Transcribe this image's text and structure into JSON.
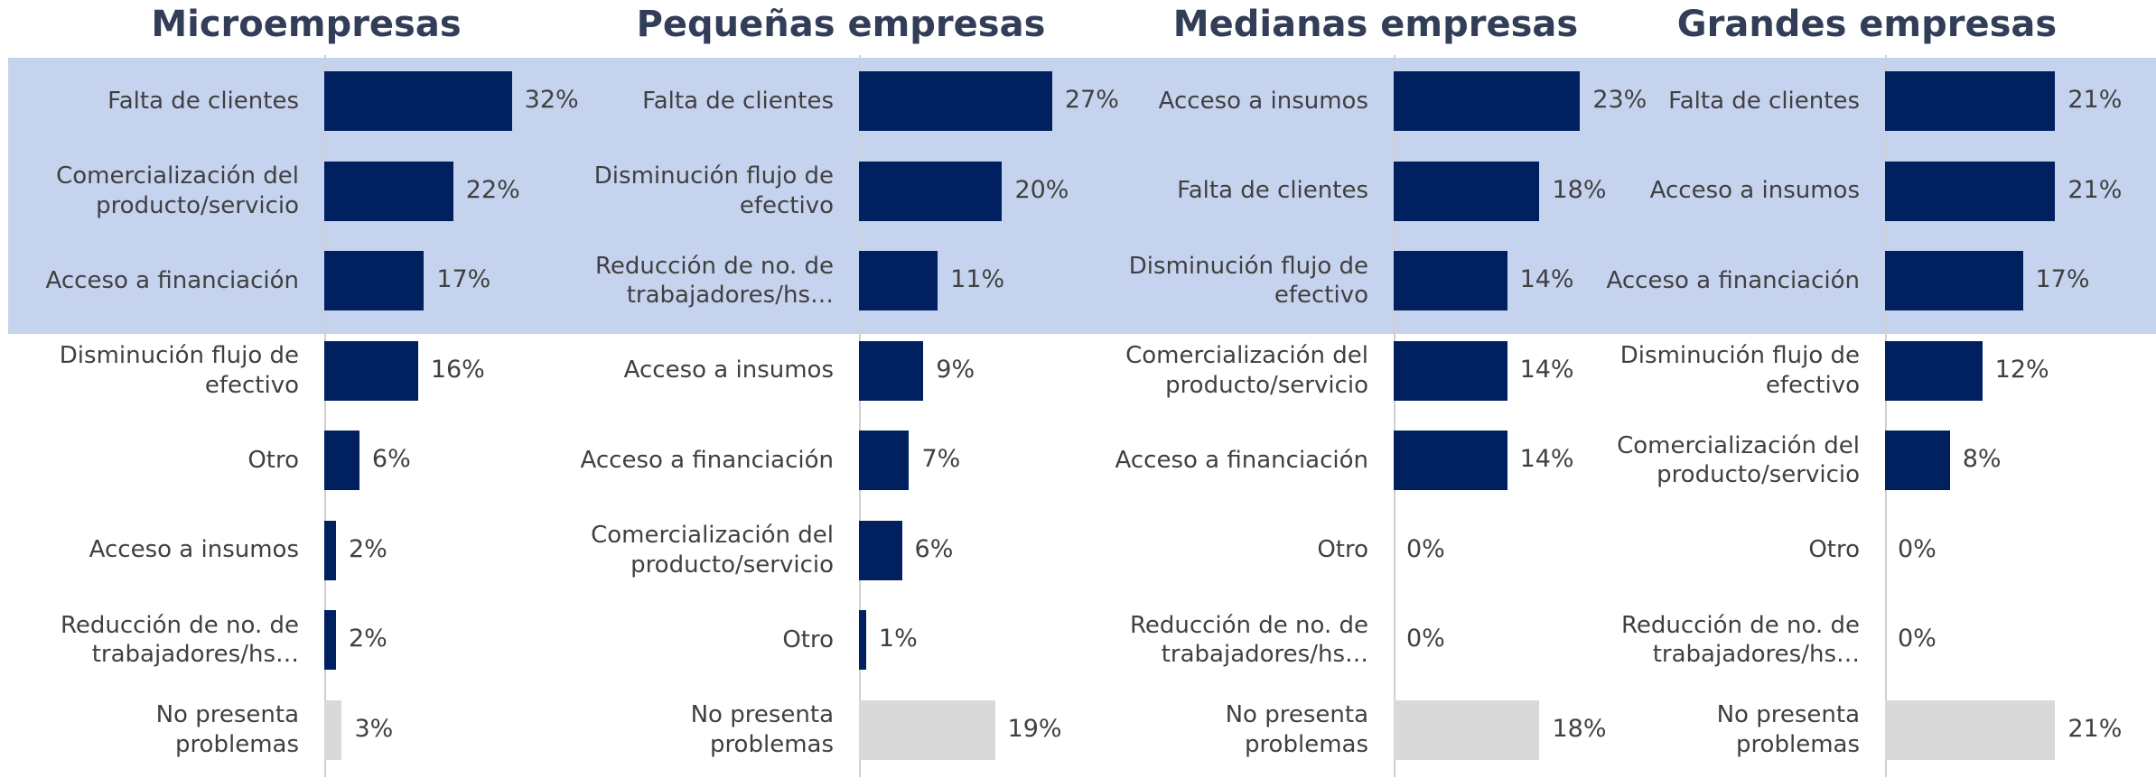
{
  "chart_data": [
    {
      "type": "bar",
      "orientation": "horizontal",
      "title": "Microempresas",
      "categories": [
        "Falta de clientes",
        "Comercialización del producto/servicio",
        "Acceso a financiación",
        "Disminución flujo de efectivo",
        "Otro",
        "Acceso a insumos",
        "Reducción de no. de trabajadores/hs…",
        "No presenta problemas"
      ],
      "values": [
        32,
        22,
        17,
        16,
        6,
        2,
        2,
        3
      ],
      "value_labels": [
        "32%",
        "22%",
        "17%",
        "16%",
        "6%",
        "2%",
        "2%",
        "3%"
      ],
      "colors": [
        "#002060",
        "#002060",
        "#002060",
        "#002060",
        "#002060",
        "#002060",
        "#002060",
        "#d9d9d9"
      ],
      "xlim": [
        0,
        47
      ]
    },
    {
      "type": "bar",
      "orientation": "horizontal",
      "title": "Pequeñas empresas",
      "categories": [
        "Falta de clientes",
        "Disminución flujo de efectivo",
        "Reducción de no. de trabajadores/hs…",
        "Acceso a insumos",
        "Acceso a financiación",
        "Comercialización del producto/servicio",
        "Otro",
        "No presenta problemas"
      ],
      "values": [
        27,
        20,
        11,
        9,
        7,
        6,
        1,
        19
      ],
      "value_labels": [
        "27%",
        "20%",
        "11%",
        "9%",
        "7%",
        "6%",
        "1%",
        "19%"
      ],
      "colors": [
        "#002060",
        "#002060",
        "#002060",
        "#002060",
        "#002060",
        "#002060",
        "#002060",
        "#d9d9d9"
      ],
      "xlim": [
        0,
        38.5
      ]
    },
    {
      "type": "bar",
      "orientation": "horizontal",
      "title": "Medianas empresas",
      "categories": [
        "Acceso a insumos",
        "Falta de clientes",
        "Disminución flujo de efectivo",
        "Comercialización del producto/servicio",
        "Acceso a financiación",
        "Otro",
        "Reducción de no. de trabajadores/hs…",
        "No presenta problemas"
      ],
      "values": [
        23,
        18,
        14,
        14,
        14,
        0,
        0,
        18
      ],
      "value_labels": [
        "23%",
        "18%",
        "14%",
        "14%",
        "14%",
        "0%",
        "0%",
        "18%"
      ],
      "colors": [
        "#002060",
        "#002060",
        "#002060",
        "#002060",
        "#002060",
        "#002060",
        "#002060",
        "#d9d9d9"
      ],
      "xlim": [
        0,
        34
      ]
    },
    {
      "type": "bar",
      "orientation": "horizontal",
      "title": "Grandes empresas",
      "categories": [
        "Falta de clientes",
        "Acceso a insumos",
        "Acceso a financiación",
        "Disminución flujo de efectivo",
        "Comercialización del producto/servicio",
        "Otro",
        "Reducción de no. de trabajadores/hs…",
        "No presenta problemas"
      ],
      "values": [
        21,
        21,
        17,
        12,
        8,
        0,
        0,
        21
      ],
      "value_labels": [
        "21%",
        "21%",
        "17%",
        "12%",
        "8%",
        "0%",
        "0%",
        "21%"
      ],
      "colors": [
        "#002060",
        "#002060",
        "#002060",
        "#002060",
        "#002060",
        "#002060",
        "#002060",
        "#d9d9d9"
      ],
      "xlim": [
        0,
        34
      ]
    }
  ]
}
